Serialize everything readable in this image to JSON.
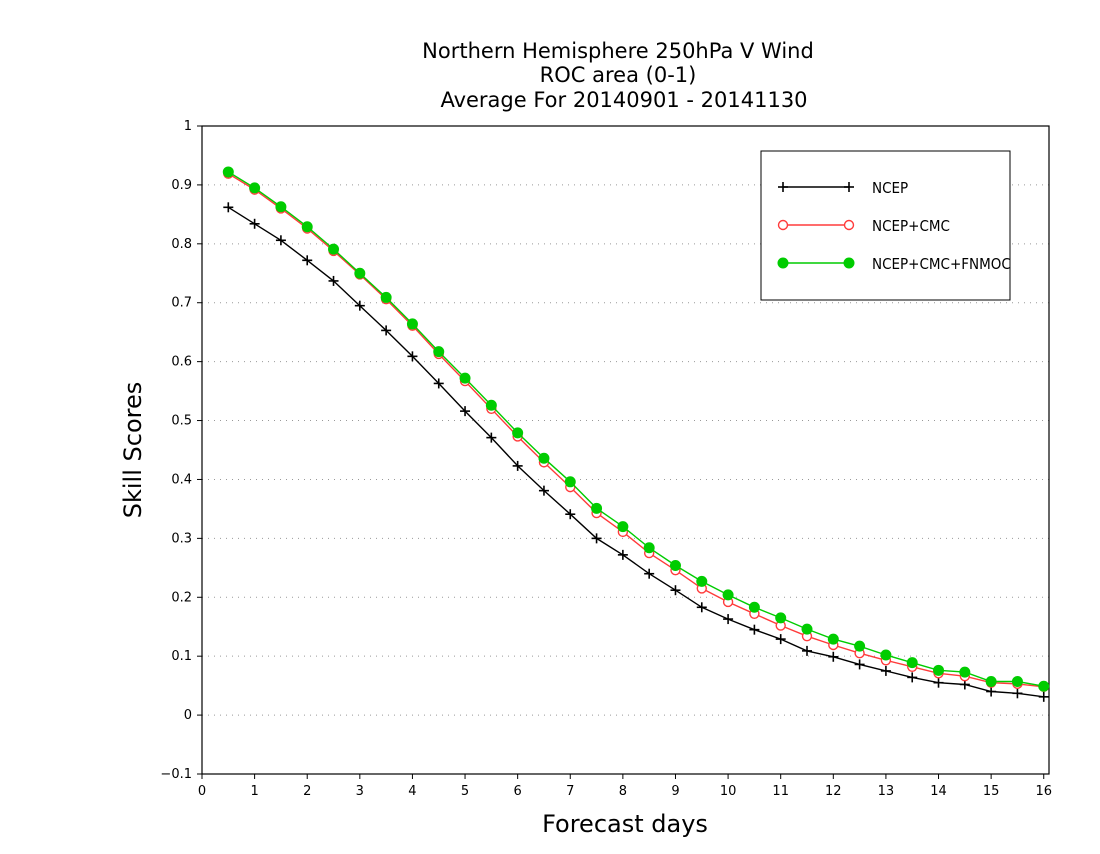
{
  "chart_data": {
    "type": "line",
    "title_lines": [
      "Northern Hemisphere 250hPa V Wind",
      "ROC area (0-1)",
      "Average For 20140901 - 20141130"
    ],
    "xlabel": "Forecast days",
    "ylabel": "Skill Scores",
    "xlim": [
      0,
      16.1
    ],
    "ylim": [
      -0.1,
      1
    ],
    "xticks": [
      "0",
      "1",
      "2",
      "3",
      "4",
      "5",
      "6",
      "7",
      "8",
      "9",
      "10",
      "11",
      "12",
      "13",
      "14",
      "15",
      "16"
    ],
    "yticks": [
      "−0.1",
      "0",
      "0.1",
      "0.2",
      "0.3",
      "0.4",
      "0.5",
      "0.6",
      "0.7",
      "0.8",
      "0.9",
      "1"
    ],
    "grid": "horizontal dotted",
    "legend_position": "top-right",
    "x": [
      0.5,
      1,
      1.5,
      2,
      2.5,
      3,
      3.5,
      4,
      4.5,
      5,
      5.5,
      6,
      6.5,
      7,
      7.5,
      8,
      8.5,
      9,
      9.5,
      10,
      10.5,
      11,
      11.5,
      12,
      12.5,
      13,
      13.5,
      14,
      14.5,
      15,
      15.5,
      16
    ],
    "series": [
      {
        "name": "NCEP",
        "color": "#000000",
        "marker": "plus",
        "values": [
          0.862,
          0.834,
          0.806,
          0.772,
          0.737,
          0.695,
          0.653,
          0.609,
          0.563,
          0.516,
          0.471,
          0.423,
          0.381,
          0.341,
          0.3,
          0.272,
          0.24,
          0.212,
          0.183,
          0.163,
          0.145,
          0.129,
          0.109,
          0.099,
          0.086,
          0.075,
          0.064,
          0.055,
          0.052,
          0.04,
          0.037,
          0.031
        ]
      },
      {
        "name": "NCEP+CMC",
        "color": "#ff3b3b",
        "marker": "open-circle",
        "values": [
          0.919,
          0.892,
          0.86,
          0.826,
          0.788,
          0.748,
          0.706,
          0.661,
          0.613,
          0.567,
          0.52,
          0.473,
          0.429,
          0.387,
          0.343,
          0.311,
          0.275,
          0.246,
          0.215,
          0.192,
          0.172,
          0.152,
          0.134,
          0.119,
          0.105,
          0.093,
          0.082,
          0.071,
          0.066,
          0.055,
          0.053,
          0.048
        ]
      },
      {
        "name": "NCEP+CMC+FNMOC",
        "color": "#00cc00",
        "marker": "filled-circle",
        "values": [
          0.922,
          0.895,
          0.863,
          0.829,
          0.791,
          0.75,
          0.709,
          0.664,
          0.617,
          0.572,
          0.526,
          0.479,
          0.436,
          0.396,
          0.351,
          0.32,
          0.284,
          0.254,
          0.227,
          0.204,
          0.183,
          0.165,
          0.146,
          0.129,
          0.117,
          0.102,
          0.089,
          0.076,
          0.073,
          0.057,
          0.057,
          0.049
        ]
      }
    ]
  }
}
